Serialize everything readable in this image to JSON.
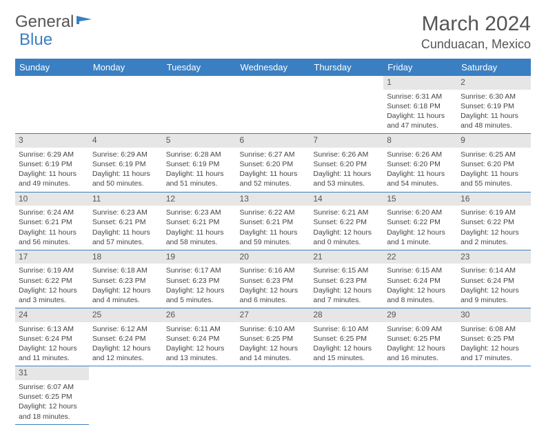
{
  "logo": {
    "text1": "General",
    "text2": "Blue"
  },
  "title": "March 2024",
  "location": "Cunduacan, Mexico",
  "colors": {
    "accent": "#3a7fc2",
    "header_bg": "#3a7fc2",
    "daynum_bg": "#e6e6e6",
    "text": "#555"
  },
  "weekdays": [
    "Sunday",
    "Monday",
    "Tuesday",
    "Wednesday",
    "Thursday",
    "Friday",
    "Saturday"
  ],
  "weeks": [
    [
      null,
      null,
      null,
      null,
      null,
      {
        "n": "1",
        "sr": "6:31 AM",
        "ss": "6:18 PM",
        "dl": "11 hours and 47 minutes."
      },
      {
        "n": "2",
        "sr": "6:30 AM",
        "ss": "6:19 PM",
        "dl": "11 hours and 48 minutes."
      }
    ],
    [
      {
        "n": "3",
        "sr": "6:29 AM",
        "ss": "6:19 PM",
        "dl": "11 hours and 49 minutes."
      },
      {
        "n": "4",
        "sr": "6:29 AM",
        "ss": "6:19 PM",
        "dl": "11 hours and 50 minutes."
      },
      {
        "n": "5",
        "sr": "6:28 AM",
        "ss": "6:19 PM",
        "dl": "11 hours and 51 minutes."
      },
      {
        "n": "6",
        "sr": "6:27 AM",
        "ss": "6:20 PM",
        "dl": "11 hours and 52 minutes."
      },
      {
        "n": "7",
        "sr": "6:26 AM",
        "ss": "6:20 PM",
        "dl": "11 hours and 53 minutes."
      },
      {
        "n": "8",
        "sr": "6:26 AM",
        "ss": "6:20 PM",
        "dl": "11 hours and 54 minutes."
      },
      {
        "n": "9",
        "sr": "6:25 AM",
        "ss": "6:20 PM",
        "dl": "11 hours and 55 minutes."
      }
    ],
    [
      {
        "n": "10",
        "sr": "6:24 AM",
        "ss": "6:21 PM",
        "dl": "11 hours and 56 minutes."
      },
      {
        "n": "11",
        "sr": "6:23 AM",
        "ss": "6:21 PM",
        "dl": "11 hours and 57 minutes."
      },
      {
        "n": "12",
        "sr": "6:23 AM",
        "ss": "6:21 PM",
        "dl": "11 hours and 58 minutes."
      },
      {
        "n": "13",
        "sr": "6:22 AM",
        "ss": "6:21 PM",
        "dl": "11 hours and 59 minutes."
      },
      {
        "n": "14",
        "sr": "6:21 AM",
        "ss": "6:22 PM",
        "dl": "12 hours and 0 minutes."
      },
      {
        "n": "15",
        "sr": "6:20 AM",
        "ss": "6:22 PM",
        "dl": "12 hours and 1 minute."
      },
      {
        "n": "16",
        "sr": "6:19 AM",
        "ss": "6:22 PM",
        "dl": "12 hours and 2 minutes."
      }
    ],
    [
      {
        "n": "17",
        "sr": "6:19 AM",
        "ss": "6:22 PM",
        "dl": "12 hours and 3 minutes."
      },
      {
        "n": "18",
        "sr": "6:18 AM",
        "ss": "6:23 PM",
        "dl": "12 hours and 4 minutes."
      },
      {
        "n": "19",
        "sr": "6:17 AM",
        "ss": "6:23 PM",
        "dl": "12 hours and 5 minutes."
      },
      {
        "n": "20",
        "sr": "6:16 AM",
        "ss": "6:23 PM",
        "dl": "12 hours and 6 minutes."
      },
      {
        "n": "21",
        "sr": "6:15 AM",
        "ss": "6:23 PM",
        "dl": "12 hours and 7 minutes."
      },
      {
        "n": "22",
        "sr": "6:15 AM",
        "ss": "6:24 PM",
        "dl": "12 hours and 8 minutes."
      },
      {
        "n": "23",
        "sr": "6:14 AM",
        "ss": "6:24 PM",
        "dl": "12 hours and 9 minutes."
      }
    ],
    [
      {
        "n": "24",
        "sr": "6:13 AM",
        "ss": "6:24 PM",
        "dl": "12 hours and 11 minutes."
      },
      {
        "n": "25",
        "sr": "6:12 AM",
        "ss": "6:24 PM",
        "dl": "12 hours and 12 minutes."
      },
      {
        "n": "26",
        "sr": "6:11 AM",
        "ss": "6:24 PM",
        "dl": "12 hours and 13 minutes."
      },
      {
        "n": "27",
        "sr": "6:10 AM",
        "ss": "6:25 PM",
        "dl": "12 hours and 14 minutes."
      },
      {
        "n": "28",
        "sr": "6:10 AM",
        "ss": "6:25 PM",
        "dl": "12 hours and 15 minutes."
      },
      {
        "n": "29",
        "sr": "6:09 AM",
        "ss": "6:25 PM",
        "dl": "12 hours and 16 minutes."
      },
      {
        "n": "30",
        "sr": "6:08 AM",
        "ss": "6:25 PM",
        "dl": "12 hours and 17 minutes."
      }
    ],
    [
      {
        "n": "31",
        "sr": "6:07 AM",
        "ss": "6:25 PM",
        "dl": "12 hours and 18 minutes."
      },
      null,
      null,
      null,
      null,
      null,
      null
    ]
  ],
  "labels": {
    "sunrise": "Sunrise:",
    "sunset": "Sunset:",
    "daylight": "Daylight:"
  }
}
